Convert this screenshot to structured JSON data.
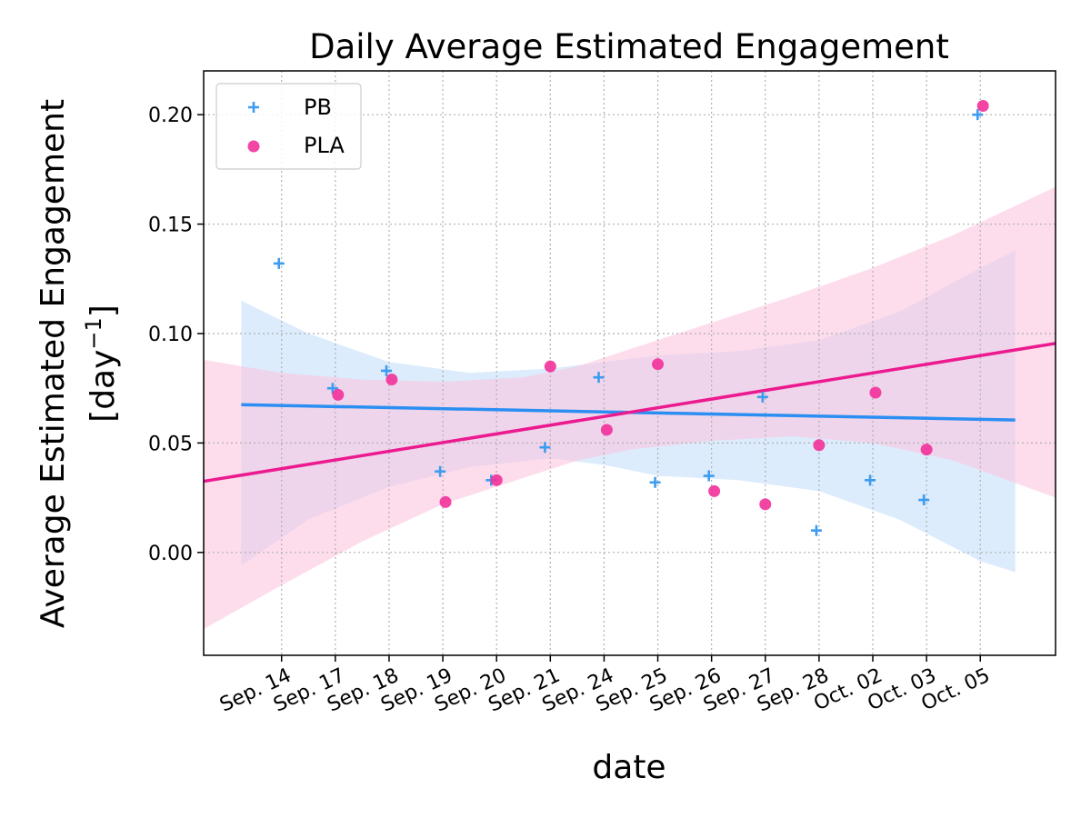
{
  "chart_data": {
    "type": "scatter",
    "title": "Daily Average Estimated Engagement",
    "xlabel": "date",
    "ylabel_line1": "Average Estimated Engagement",
    "ylabel_unit": "[day",
    "ylabel_exp": "−1",
    "ylabel_close": "]",
    "ylim": [
      -0.047,
      0.22
    ],
    "xlim": [
      -1.45,
      14.4
    ],
    "grid": true,
    "legend_position": "upper-left",
    "categories": [
      "Sep. 14",
      "Sep. 17",
      "Sep. 18",
      "Sep. 19",
      "Sep. 20",
      "Sep. 21",
      "Sep. 24",
      "Sep. 25",
      "Sep. 26",
      "Sep. 27",
      "Sep. 28",
      "Oct. 02",
      "Oct. 03",
      "Oct. 05"
    ],
    "yticks": [
      0.0,
      0.05,
      0.1,
      0.15,
      0.2
    ],
    "ytick_labels": [
      "0.00",
      "0.05",
      "0.10",
      "0.15",
      "0.20"
    ],
    "series": [
      {
        "name": "PB",
        "marker": "plus",
        "color": "#3d9cf0",
        "points": [
          [
            -0.05,
            0.132
          ],
          [
            0.95,
            0.075
          ],
          [
            1.95,
            0.083
          ],
          [
            2.95,
            0.037
          ],
          [
            3.9,
            0.033
          ],
          [
            4.9,
            0.048
          ],
          [
            5.9,
            0.08
          ],
          [
            6.95,
            0.032
          ],
          [
            7.95,
            0.035
          ],
          [
            8.95,
            0.071
          ],
          [
            9.95,
            0.01
          ],
          [
            10.95,
            0.033
          ],
          [
            11.95,
            0.024
          ],
          [
            12.95,
            0.2
          ]
        ],
        "fit": {
          "x": [
            -0.75,
            13.65
          ],
          "y": [
            0.0675,
            0.0605
          ]
        },
        "ci": {
          "color": "#bfdcf9",
          "x": [
            -0.75,
            0.5,
            2.0,
            3.5,
            5.0,
            6.0,
            7.0,
            8.5,
            10.0,
            11.5,
            13.0,
            13.65
          ],
          "upper": [
            0.115,
            0.1,
            0.087,
            0.082,
            0.084,
            0.087,
            0.09,
            0.092,
            0.097,
            0.11,
            0.13,
            0.138
          ],
          "lower": [
            -0.006,
            0.015,
            0.03,
            0.039,
            0.043,
            0.04,
            0.035,
            0.033,
            0.028,
            0.015,
            -0.004,
            -0.009
          ]
        }
      },
      {
        "name": "PLA",
        "marker": "circle",
        "color": "#f2319a",
        "points": [
          [
            1.05,
            0.072
          ],
          [
            2.05,
            0.079
          ],
          [
            3.05,
            0.023
          ],
          [
            4.0,
            0.033
          ],
          [
            5.0,
            0.085
          ],
          [
            6.05,
            0.056
          ],
          [
            7.0,
            0.086
          ],
          [
            8.05,
            0.028
          ],
          [
            9.0,
            0.022
          ],
          [
            10.0,
            0.049
          ],
          [
            11.05,
            0.073
          ],
          [
            12.0,
            0.047
          ],
          [
            13.05,
            0.204
          ]
        ],
        "fit": {
          "x": [
            -1.45,
            14.4
          ],
          "y": [
            0.0325,
            0.0955
          ]
        },
        "ci": {
          "color": "#fcc6e0",
          "x": [
            -1.45,
            0.0,
            1.5,
            3.0,
            4.5,
            5.5,
            6.5,
            8.0,
            9.5,
            11.0,
            12.5,
            14.4
          ],
          "upper": [
            0.088,
            0.082,
            0.079,
            0.078,
            0.08,
            0.085,
            0.093,
            0.105,
            0.117,
            0.13,
            0.145,
            0.167
          ],
          "lower": [
            -0.035,
            -0.015,
            0.005,
            0.022,
            0.034,
            0.042,
            0.047,
            0.051,
            0.053,
            0.05,
            0.042,
            0.025
          ]
        }
      }
    ]
  }
}
